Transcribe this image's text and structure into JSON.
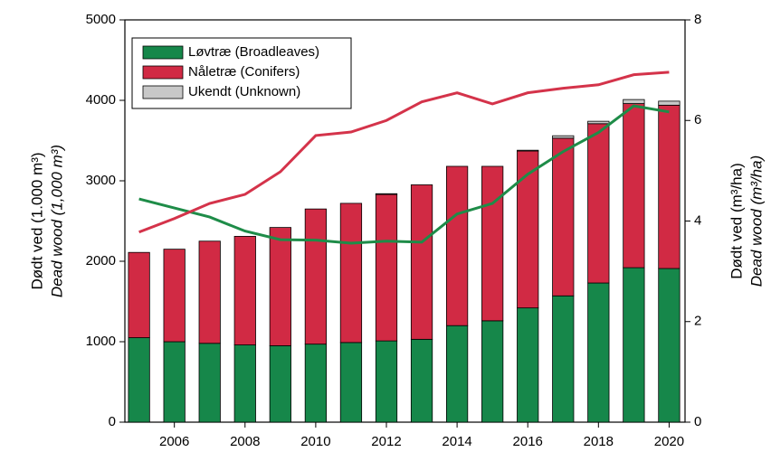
{
  "chart_data": {
    "type": "bar",
    "x": [
      2005,
      2006,
      2007,
      2008,
      2009,
      2010,
      2011,
      2012,
      2013,
      2014,
      2015,
      2016,
      2017,
      2018,
      2019,
      2020
    ],
    "xlim": [
      2004.6,
      2020.45
    ],
    "xticks": [
      2006,
      2008,
      2010,
      2012,
      2014,
      2016,
      2018,
      2020
    ],
    "ylim": [
      0,
      5000
    ],
    "yticks": [
      0,
      1000,
      2000,
      3000,
      4000,
      5000
    ],
    "y2lim": [
      0,
      8
    ],
    "y2ticks": [
      0,
      2,
      4,
      6,
      8
    ],
    "ylabel": [
      "Dødt ved (1.000 m³)",
      "Dead wood (1,000 m³)"
    ],
    "y2label": [
      "Dødt ved (m³/ha)",
      "Dead wood (m³/ha)"
    ],
    "legend": "upper left",
    "series": [
      {
        "name": "Løvtræ (Broadleaves)",
        "color": "#16874a",
        "values": [
          1050,
          1000,
          980,
          960,
          950,
          970,
          990,
          1010,
          1030,
          1200,
          1260,
          1420,
          1570,
          1730,
          1920,
          1910
        ]
      },
      {
        "name": "Nåletræ (Conifers)",
        "color": "#d12a44",
        "values": [
          1060,
          1150,
          1270,
          1350,
          1470,
          1680,
          1730,
          1820,
          1920,
          1980,
          1920,
          1950,
          1960,
          1980,
          2040,
          2030
        ]
      },
      {
        "name": "Ukendt (Unknown)",
        "color": "#c8c8c8",
        "values": [
          0,
          0,
          0,
          0,
          0,
          0,
          0,
          10,
          0,
          0,
          0,
          10,
          30,
          30,
          50,
          50
        ]
      },
      {
        "type": "line",
        "axis": "y2",
        "color": "#1e8c48",
        "values": [
          4.44,
          4.26,
          4.08,
          3.8,
          3.63,
          3.62,
          3.56,
          3.6,
          3.58,
          4.14,
          4.35,
          4.93,
          5.38,
          5.76,
          6.29,
          6.17
        ]
      },
      {
        "type": "line",
        "axis": "y2",
        "color": "#d4334a",
        "values": [
          3.78,
          4.05,
          4.35,
          4.53,
          4.98,
          5.7,
          5.77,
          6.0,
          6.37,
          6.55,
          6.33,
          6.55,
          6.64,
          6.71,
          6.91,
          6.96
        ]
      }
    ]
  }
}
